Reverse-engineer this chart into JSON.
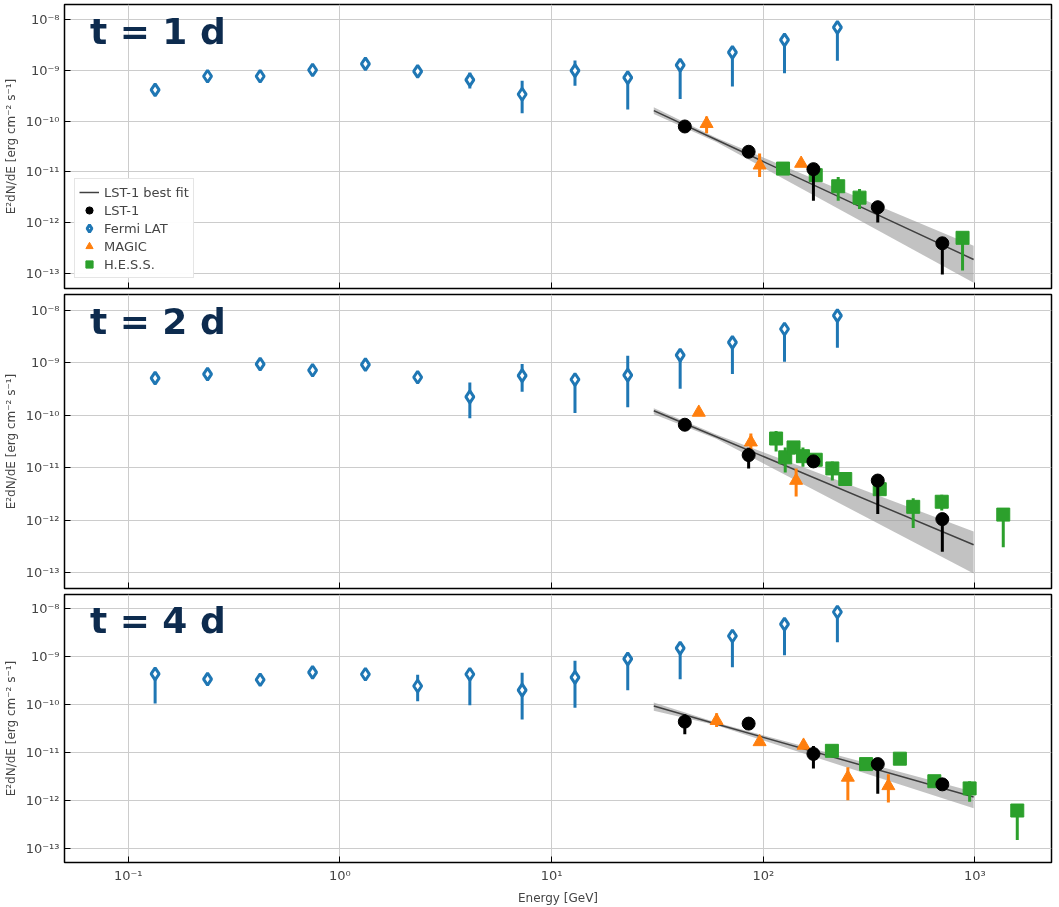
{
  "chart_data": [
    {
      "type": "scatter",
      "title": "t = 1 d",
      "ylabel": "E²dN/dE [erg cm⁻² s⁻¹]",
      "log": "xy",
      "grid": true,
      "legend": "bottom left",
      "tick_labels": "y",
      "xlim": [
        0.05,
        2300
      ],
      "ylim": [
        5e-14,
        2e-08
      ],
      "xticks": [
        {
          "value": 0.1,
          "label": null
        },
        {
          "value": 1,
          "label": null
        },
        {
          "value": 10,
          "label": null
        },
        {
          "value": 100,
          "label": null
        },
        {
          "value": 1000,
          "label": null
        }
      ],
      "yticks": [
        {
          "value": 1e-13,
          "label": "10⁻¹³"
        },
        {
          "value": 1e-12,
          "label": "10⁻¹²"
        },
        {
          "value": 1e-11,
          "label": "10⁻¹¹"
        },
        {
          "value": 1e-10,
          "label": "10⁻¹⁰"
        },
        {
          "value": 1e-09,
          "label": "10⁻⁹"
        },
        {
          "value": 1e-08,
          "label": "10⁻⁸"
        }
      ],
      "series": [
        {
          "name": "LST-1 best fit",
          "type": "line",
          "color": "#404040",
          "x": [
            30.4,
            60,
            986
          ],
          "values": [
            1.61e-10,
            4.3e-11,
            1.87e-13
          ],
          "lower": [
            1.39e-10,
            3.9e-11,
            6.5e-14
          ],
          "upper": [
            1.87e-10,
            4.7e-11,
            3.5e-13
          ]
        },
        {
          "name": "LST-1",
          "color": "#000000",
          "marker": "circle",
          "x": [
            42.6,
            85.3,
            172.6,
            347.5,
            701.5
          ],
          "values": [
            7.85e-11,
            2.49e-11,
            1.13e-11,
            2e-12,
            3.9e-13
          ],
          "errors": [
            null,
            null,
            [
              2.7e-12,
              1.13e-11
            ],
            [
              1e-12,
              2.7e-12
            ],
            [
              9.4e-14,
              3.9e-13
            ]
          ]
        },
        {
          "name": "Fermi LAT",
          "color": "#1f77b4",
          "marker": "diamond",
          "x": [
            0.134,
            0.237,
            0.42,
            0.743,
            1.32,
            2.33,
            4.11,
            7.26,
            12.9,
            22.9,
            40.5,
            71.5,
            126,
            224
          ],
          "values": [
            4.15e-10,
            7.7e-10,
            7.7e-10,
            1.02e-09,
            1.35e-09,
            9.6e-10,
            6.5e-10,
            3.4e-10,
            9.9e-10,
            7.2e-10,
            1.27e-09,
            2.27e-09,
            4e-09,
            7.1e-09
          ],
          "errors": [
            null,
            null,
            null,
            null,
            null,
            null,
            [
              4.4e-10,
              9.1e-10
            ],
            [
              1.43e-10,
              6.3e-10
            ],
            [
              5e-10,
              1.57e-09
            ],
            [
              1.69e-10,
              7.2e-10
            ],
            [
              2.75e-10,
              1.27e-09
            ],
            [
              4.8e-10,
              2.27e-09
            ],
            [
              8.8e-10,
              4e-09
            ],
            [
              1.55e-09,
              7.1e-09
            ]
          ]
        },
        {
          "name": "MAGIC",
          "color": "#ff7f0e",
          "marker": "triangle",
          "x": [
            54,
            96.1,
            151
          ],
          "values": [
            8.9e-11,
            1.35e-11,
            1.46e-11
          ],
          "errors": [
            [
              5.8e-11,
              1.24e-10
            ],
            [
              7.9e-12,
              2.3e-11
            ],
            null
          ]
        },
        {
          "name": "H.E.S.S.",
          "color": "#2ca02c",
          "marker": "square",
          "x": [
            124,
            177,
            226,
            285,
            874
          ],
          "values": [
            1.16e-11,
            8.6e-12,
            5.2e-12,
            3.1e-12,
            5e-13
          ],
          "errors": [
            null,
            null,
            [
              2.7e-12,
              7.9e-12
            ],
            [
              1.86e-12,
              4.6e-12
            ],
            [
              1.13e-13,
              5e-13
            ]
          ]
        }
      ]
    },
    {
      "type": "scatter",
      "title": "t = 2 d",
      "ylabel": "E²dN/dE [erg cm⁻² s⁻¹]",
      "log": "xy",
      "grid": true,
      "tick_labels": "y",
      "xlim": [
        0.05,
        2300
      ],
      "ylim": [
        5e-14,
        2e-08
      ],
      "xticks": [
        {
          "value": 0.1,
          "label": null
        },
        {
          "value": 1,
          "label": null
        },
        {
          "value": 10,
          "label": null
        },
        {
          "value": 100,
          "label": null
        },
        {
          "value": 1000,
          "label": null
        }
      ],
      "yticks": [
        {
          "value": 1e-13,
          "label": "10⁻¹³"
        },
        {
          "value": 1e-12,
          "label": "10⁻¹²"
        },
        {
          "value": 1e-11,
          "label": "10⁻¹¹"
        },
        {
          "value": 1e-10,
          "label": "10⁻¹⁰"
        },
        {
          "value": 1e-09,
          "label": "10⁻⁹"
        },
        {
          "value": 1e-08,
          "label": "10⁻⁸"
        }
      ],
      "series": [
        {
          "type": "line",
          "color": "#404040",
          "x": [
            30.4,
            60,
            986
          ],
          "values": [
            1.22e-10,
            3.9e-11,
            3.4e-13
          ],
          "lower": [
            1.05e-10,
            3.55e-11,
            9.7e-14
          ],
          "upper": [
            1.36e-10,
            4.3e-11,
            6.1e-13
          ]
        },
        {
          "color": "#000000",
          "marker": "circle",
          "x": [
            42.6,
            85.3,
            172.6,
            347.5,
            701.5
          ],
          "values": [
            6.6e-11,
            1.74e-11,
            1.32e-11,
            5.7e-12,
            1.05e-12
          ],
          "errors": [
            null,
            [
              9.7e-12,
              2.4e-11
            ],
            null,
            [
              1.32e-12,
              5.7e-12
            ],
            [
              2.5e-13,
              1.05e-12
            ]
          ]
        },
        {
          "color": "#1f77b4",
          "marker": "diamond",
          "x": [
            0.134,
            0.237,
            0.42,
            0.743,
            1.32,
            2.33,
            4.11,
            7.26,
            12.9,
            22.9,
            40.5,
            71.5,
            126,
            224
          ],
          "values": [
            5.1e-10,
            6.1e-10,
            9.4e-10,
            7.2e-10,
            9.2e-10,
            5.3e-10,
            2.24e-10,
            5.7e-10,
            4.8e-10,
            5.8e-10,
            1.4e-09,
            2.44e-09,
            4.4e-09,
            7.9e-09
          ],
          "errors": [
            null,
            null,
            null,
            null,
            null,
            null,
            [
              8.8e-11,
              4.2e-10
            ],
            [
              2.8e-10,
              9.5e-10
            ],
            [
              1.1e-10,
              4.8e-10
            ],
            [
              1.42e-10,
              1.36e-09
            ],
            [
              3.2e-10,
              1.4e-09
            ],
            [
              6.1e-10,
              2.44e-09
            ],
            [
              1.05e-09,
              4.4e-09
            ],
            [
              1.94e-09,
              7.9e-09
            ]
          ]
        },
        {
          "color": "#ff7f0e",
          "marker": "triangle",
          "x": [
            49.6,
            87.4,
            143
          ],
          "values": [
            1.13e-10,
            3.07e-11,
            5.7e-12
          ],
          "errors": [
            null,
            [
              2.25e-11,
              4.5e-11
            ],
            [
              2.84e-12,
              9.7e-12
            ]
          ]
        },
        {
          "color": "#2ca02c",
          "marker": "square",
          "x": [
            115,
            127,
            139,
            154,
            177,
            212,
            244,
            355,
            511,
            697,
            1361
          ],
          "values": [
            3.6e-11,
            1.58e-11,
            2.44e-11,
            1.66e-11,
            1.42e-11,
            9.7e-12,
            6.1e-12,
            3.9e-12,
            1.8e-12,
            2.25e-12,
            1.28e-12
          ],
          "errors": [
            [
              2.03e-11,
              5e-11
            ],
            [
              8.1e-12,
              2.44e-11
            ],
            [
              1.79e-11,
              3.07e-11
            ],
            [
              1.04e-11,
              2.44e-11
            ],
            null,
            [
              5.7e-12,
              1.32e-11
            ],
            null,
            null,
            [
              7.1e-13,
              2.63e-12
            ],
            [
              1.54e-12,
              3.07e-12
            ],
            [
              3.07e-13,
              1.28e-12
            ]
          ]
        }
      ]
    },
    {
      "type": "scatter",
      "title": "t = 4 d",
      "xlabel": "Energy [GeV]",
      "ylabel": "E²dN/dE [erg cm⁻² s⁻¹]",
      "log": "xy",
      "grid": true,
      "xlim": [
        0.05,
        2300
      ],
      "ylim": [
        5e-14,
        2e-08
      ],
      "xticks": [
        {
          "value": 0.1,
          "label": "10⁻¹"
        },
        {
          "value": 1,
          "label": "10⁰"
        },
        {
          "value": 10,
          "label": "10¹"
        },
        {
          "value": 100,
          "label": "10²"
        },
        {
          "value": 1000,
          "label": "10³"
        }
      ],
      "yticks": [
        {
          "value": 1e-13,
          "label": "10⁻¹³"
        },
        {
          "value": 1e-12,
          "label": "10⁻¹²"
        },
        {
          "value": 1e-11,
          "label": "10⁻¹¹"
        },
        {
          "value": 1e-10,
          "label": "10⁻¹⁰"
        },
        {
          "value": 1e-09,
          "label": "10⁻⁹"
        },
        {
          "value": 1e-08,
          "label": "10⁻⁸"
        }
      ],
      "series": [
        {
          "type": "line",
          "color": "#404040",
          "x": [
            30.4,
            60,
            986
          ],
          "values": [
            9.3e-11,
            3.94e-11,
            1.17e-12
          ],
          "lower": [
            7.4e-11,
            3.68e-11,
            6.8e-13
          ],
          "upper": [
            1.11e-10,
            4.2e-11,
            1.51e-12
          ]
        },
        {
          "color": "#000000",
          "marker": "circle",
          "x": [
            42.6,
            85.3,
            172.6,
            347.5,
            701.5
          ],
          "values": [
            4.4e-11,
            4e-11,
            9.3e-12,
            5.7e-12,
            2.15e-12
          ],
          "errors": [
            [
              2.4e-11,
              6.3e-11
            ],
            null,
            [
              4.6e-12,
              1.36e-11
            ],
            [
              1.36e-12,
              5.7e-12
            ],
            null
          ]
        },
        {
          "color": "#1f77b4",
          "marker": "diamond",
          "x": [
            0.134,
            0.237,
            0.42,
            0.743,
            1.32,
            2.33,
            4.11,
            7.26,
            12.9,
            22.9,
            40.5,
            71.5,
            126,
            224
          ],
          "values": [
            4.4e-10,
            3.4e-10,
            3.3e-10,
            4.7e-10,
            4.3e-10,
            2.45e-10,
            4.3e-10,
            2e-10,
            3.7e-10,
            9e-10,
            1.51e-09,
            2.71e-09,
            4.8e-09,
            8.6e-09
          ],
          "errors": [
            [
              1.05e-10,
              4.4e-10
            ],
            null,
            null,
            null,
            null,
            [
              1.18e-10,
              4.2e-10
            ],
            [
              9.7e-11,
              4.3e-10
            ],
            [
              4.9e-11,
              4.6e-10
            ],
            [
              8.6e-11,
              8.2e-10
            ],
            [
              2e-10,
              9e-10
            ],
            [
              3.4e-10,
              1.51e-09
            ],
            [
              6e-10,
              2.71e-09
            ],
            [
              1.08e-09,
              4.8e-09
            ],
            [
              2e-09,
              8.6e-09
            ]
          ]
        },
        {
          "color": "#ff7f0e",
          "marker": "triangle",
          "x": [
            60.2,
            96.1,
            155,
            251,
            390
          ],
          "values": [
            4.6e-11,
            1.66e-11,
            1.4e-11,
            3e-12,
            2e-12
          ],
          "errors": [
            [
              3.4e-11,
              6.6e-11
            ],
            null,
            null,
            [
              1e-12,
              4.9e-12
            ],
            [
              9e-13,
              3.5e-12
            ]
          ]
        },
        {
          "color": "#2ca02c",
          "marker": "square",
          "x": [
            211,
            306,
            442,
            643,
            944,
            1585
          ],
          "values": [
            1.08e-11,
            5.7e-12,
            7.4e-12,
            2.5e-12,
            1.77e-12,
            6.1e-13
          ],
          "errors": [
            null,
            null,
            null,
            null,
            [
              9.3e-13,
              2.5e-12
            ],
            [
              1.47e-13,
              6.1e-13
            ]
          ]
        }
      ]
    }
  ]
}
